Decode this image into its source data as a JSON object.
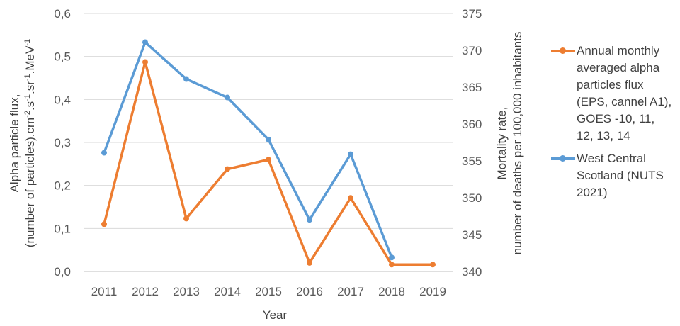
{
  "chart_data": {
    "type": "line",
    "categories": [
      "2011",
      "2012",
      "2013",
      "2014",
      "2015",
      "2016",
      "2017",
      "2018",
      "2019"
    ],
    "xlabel": "Year",
    "ylabel_left": {
      "line1": "Alpha particle flux,",
      "line2_parts": [
        "(number of particles).cm",
        "-2",
        ".s",
        "-1",
        ".sr",
        "-1",
        ".MeV",
        "-1"
      ]
    },
    "ylabel_right": {
      "line1": "Mortality rate,",
      "line2": "number of deaths per 100,000 inhabitants"
    },
    "ylim_left": [
      0,
      0.6
    ],
    "yticks_left": [
      "0,0",
      "0,1",
      "0,2",
      "0,3",
      "0,4",
      "0,5",
      "0,6"
    ],
    "ylim_right": [
      340,
      375
    ],
    "yticks_right": [
      "340",
      "345",
      "350",
      "355",
      "360",
      "365",
      "370",
      "375"
    ],
    "grid": true,
    "legend_position": "right",
    "series": [
      {
        "name": "Annual monthly averaged alpha particles flux (EPS, cannel A1), GOES -10, 11, 12, 13, 14",
        "legend_lines": [
          "Annual monthly",
          "averaged alpha",
          "particles flux",
          "(EPS, cannel A1),",
          "GOES -10, 11,",
          "12, 13, 14"
        ],
        "axis": "left",
        "color": "#ED7D31",
        "values": [
          0.11,
          0.487,
          0.123,
          0.238,
          0.26,
          0.02,
          0.171,
          0.016,
          0.016
        ]
      },
      {
        "name": "West Central Scotland (NUTS 2021)",
        "legend_lines": [
          "West Central",
          "Scotland (NUTS",
          "2021)"
        ],
        "axis": "right",
        "color": "#5B9BD5",
        "values": [
          356.1,
          371.1,
          366.1,
          363.6,
          357.9,
          347.0,
          355.9,
          341.9,
          null
        ]
      }
    ]
  }
}
